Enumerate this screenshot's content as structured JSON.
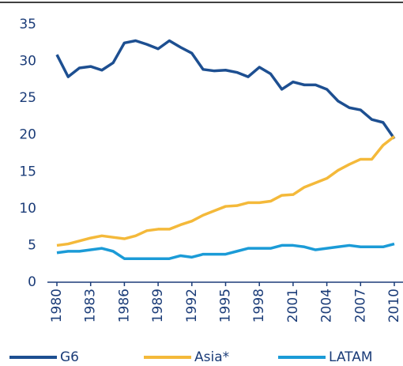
{
  "chart_data": {
    "type": "line",
    "x": [
      1980,
      1981,
      1982,
      1983,
      1984,
      1985,
      1986,
      1987,
      1988,
      1989,
      1990,
      1991,
      1992,
      1993,
      1994,
      1995,
      1996,
      1997,
      1998,
      1999,
      2000,
      2001,
      2002,
      2003,
      2004,
      2005,
      2006,
      2007,
      2008,
      2009,
      2010
    ],
    "series": [
      {
        "name": "G6",
        "color": "#1d4f91",
        "values": [
          30.9,
          27.9,
          29.1,
          29.3,
          28.8,
          29.8,
          32.5,
          32.8,
          32.3,
          31.7,
          32.8,
          31.9,
          31.1,
          28.9,
          28.7,
          28.8,
          28.5,
          27.9,
          29.2,
          28.3,
          26.2,
          27.2,
          26.8,
          26.8,
          26.2,
          24.6,
          23.7,
          23.4,
          22.1,
          21.7,
          19.5
        ]
      },
      {
        "name": "Asia*",
        "color": "#f4b93a",
        "values": [
          5.0,
          5.2,
          5.6,
          6.0,
          6.3,
          6.1,
          5.9,
          6.3,
          7.0,
          7.2,
          7.2,
          7.8,
          8.3,
          9.1,
          9.7,
          10.3,
          10.4,
          10.8,
          10.8,
          11.0,
          11.8,
          11.9,
          12.9,
          13.5,
          14.1,
          15.2,
          16.0,
          16.7,
          16.7,
          18.6,
          19.8
        ]
      },
      {
        "name": "LATAM",
        "color": "#1b9bd7",
        "values": [
          4.0,
          4.2,
          4.2,
          4.4,
          4.6,
          4.2,
          3.2,
          3.2,
          3.2,
          3.2,
          3.2,
          3.6,
          3.4,
          3.8,
          3.8,
          3.8,
          4.2,
          4.6,
          4.6,
          4.6,
          5.0,
          5.0,
          4.8,
          4.4,
          4.6,
          4.8,
          5.0,
          4.8,
          4.8,
          4.8,
          5.2
        ]
      }
    ],
    "xlim": [
      1980,
      2010
    ],
    "xticks": [
      1980,
      1983,
      1986,
      1989,
      1992,
      1995,
      1998,
      2001,
      2004,
      2007,
      2010
    ],
    "ylim": [
      0,
      35
    ],
    "yticks": [
      0,
      5,
      10,
      15,
      20,
      25,
      30,
      35
    ],
    "grid": false
  }
}
